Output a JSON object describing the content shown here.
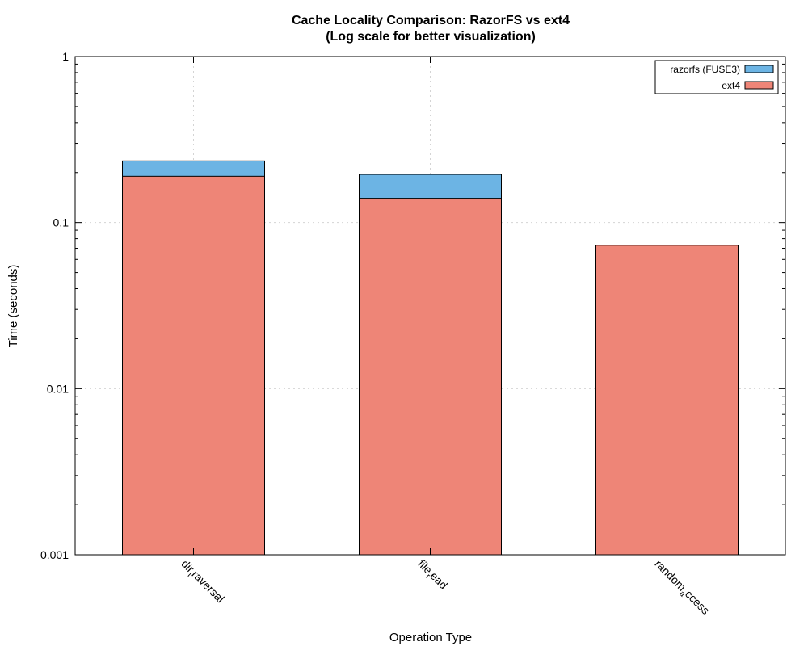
{
  "chart_data": {
    "type": "bar",
    "stacked": true,
    "title": "Cache Locality Comparison: RazorFS vs ext4",
    "subtitle": "(Log scale for better visualization)",
    "xlabel": "Operation Type",
    "ylabel": "Time (seconds)",
    "yscale": "log",
    "ylim": [
      0.001,
      1
    ],
    "yticks": [
      "0.001",
      "0.01",
      "0.1",
      "1"
    ],
    "grid": true,
    "legend_position": "top-right",
    "categories": [
      {
        "main": "dir",
        "sub": "t",
        "rest": "raversal"
      },
      {
        "main": "file",
        "sub": "r",
        "rest": "ead"
      },
      {
        "main": "random",
        "sub": "a",
        "rest": "ccess"
      }
    ],
    "series": [
      {
        "name": "razorfs (FUSE3)",
        "color": "#6cb4e4",
        "values": [
          0.235,
          0.195,
          0.073
        ]
      },
      {
        "name": "ext4",
        "color": "#ee8577",
        "values": [
          0.19,
          0.14,
          0.073
        ]
      }
    ]
  }
}
